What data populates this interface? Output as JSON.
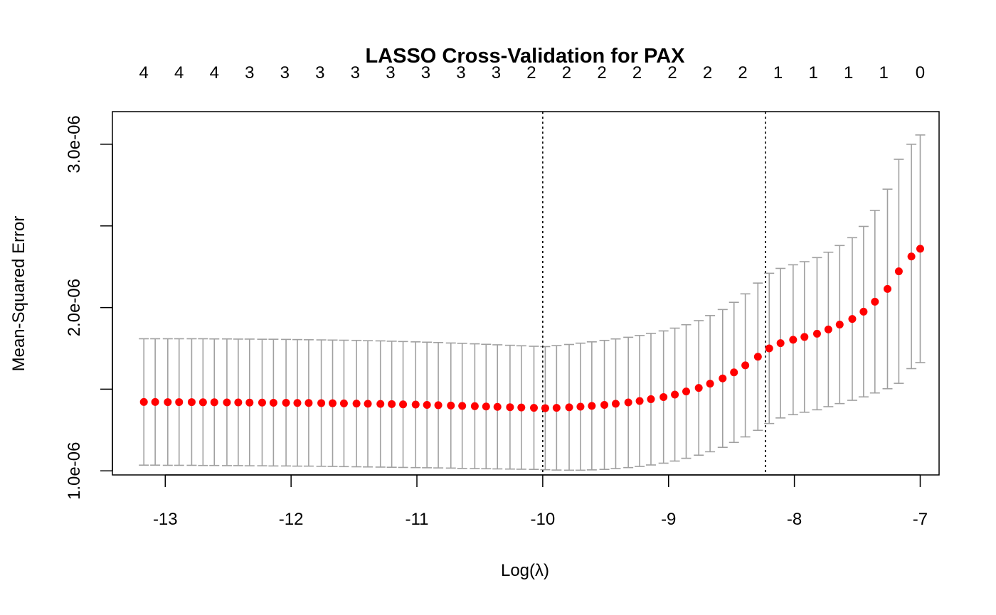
{
  "chart_data": {
    "type": "scatter",
    "title": "LASSO Cross-Validation for PAX",
    "xlabel": "Log(λ)",
    "ylabel": "Mean-Squared Error",
    "xlim": [
      -13.42,
      -6.85
    ],
    "ylim": [
      9.75e-07,
      3.2e-06
    ],
    "x_ticks": [
      -13,
      -12,
      -11,
      -10,
      -9,
      -8,
      -7
    ],
    "x_tick_labels": [
      "-13",
      "-12",
      "-11",
      "-10",
      "-9",
      "-8",
      "-7"
    ],
    "y_ticks": [
      1e-06,
      1.5e-06,
      2e-06,
      2.5e-06,
      3e-06
    ],
    "y_tick_labels": [
      "1.0e-06",
      "",
      "2.0e-06",
      "",
      "3.0e-06"
    ],
    "lambda_min_log": -10.0,
    "lambda_1se_log": -8.23,
    "top_axis": {
      "positions": [
        -13.17,
        -12.89,
        -12.61,
        -12.33,
        -12.05,
        -11.77,
        -11.49,
        -11.21,
        -10.93,
        -10.65,
        -10.37,
        -10.09,
        -9.81,
        -9.53,
        -9.25,
        -8.97,
        -8.69,
        -8.41,
        -8.13,
        -7.85,
        -7.57,
        -7.29,
        -7.0
      ],
      "labels": [
        "4",
        "4",
        "4",
        "3",
        "3",
        "3",
        "3",
        "3",
        "3",
        "3",
        "3",
        "2",
        "2",
        "2",
        "2",
        "2",
        "2",
        "2",
        "1",
        "1",
        "1",
        "1",
        "0"
      ]
    },
    "series": [
      {
        "x": [
          -13.17,
          -13.08,
          -12.98,
          -12.89,
          -12.79,
          -12.7,
          -12.61,
          -12.51,
          -12.42,
          -12.33,
          -12.23,
          -12.14,
          -12.04,
          -11.95,
          -11.86,
          -11.76,
          -11.67,
          -11.58,
          -11.48,
          -11.39,
          -11.29,
          -11.2,
          -11.11,
          -11.01,
          -10.92,
          -10.83,
          -10.73,
          -10.64,
          -10.54,
          -10.45,
          -10.36,
          -10.26,
          -10.17,
          -10.07,
          -9.98,
          -9.89,
          -9.79,
          -9.7,
          -9.61,
          -9.51,
          -9.42,
          -9.32,
          -9.23,
          -9.14,
          -9.04,
          -8.95,
          -8.86,
          -8.76,
          -8.67,
          -8.57,
          -8.48,
          -8.39,
          -8.29,
          -8.2,
          -8.11,
          -8.01,
          -7.92,
          -7.82,
          -7.73,
          -7.64,
          -7.54,
          -7.45,
          -7.36,
          -7.26,
          -7.17,
          -7.07,
          -7.0
        ],
        "y": [
          1.422e-06,
          1.422e-06,
          1.421e-06,
          1.421e-06,
          1.421e-06,
          1.42e-06,
          1.42e-06,
          1.419e-06,
          1.419e-06,
          1.418e-06,
          1.418e-06,
          1.417e-06,
          1.417e-06,
          1.416e-06,
          1.416e-06,
          1.415e-06,
          1.414e-06,
          1.413e-06,
          1.412e-06,
          1.411e-06,
          1.41e-06,
          1.409e-06,
          1.407e-06,
          1.406e-06,
          1.404e-06,
          1.402e-06,
          1.4e-06,
          1.398e-06,
          1.396e-06,
          1.394e-06,
          1.392e-06,
          1.39e-06,
          1.388e-06,
          1.386e-06,
          1.384e-06,
          1.386e-06,
          1.389e-06,
          1.393e-06,
          1.398e-06,
          1.404e-06,
          1.411e-06,
          1.419e-06,
          1.428e-06,
          1.439e-06,
          1.452e-06,
          1.467e-06,
          1.486e-06,
          1.508e-06,
          1.534e-06,
          1.566e-06,
          1.603e-06,
          1.646e-06,
          1.699e-06,
          1.75e-06,
          1.782e-06,
          1.803e-06,
          1.82e-06,
          1.84e-06,
          1.866e-06,
          1.896e-06,
          1.93e-06,
          1.975e-06,
          2.036e-06,
          2.114e-06,
          2.222e-06,
          2.313e-06,
          2.36e-06
        ],
        "upper": [
          1.809e-06,
          1.809e-06,
          1.809e-06,
          1.809e-06,
          1.809e-06,
          1.809e-06,
          1.808e-06,
          1.808e-06,
          1.807e-06,
          1.807e-06,
          1.806e-06,
          1.806e-06,
          1.805e-06,
          1.804e-06,
          1.803e-06,
          1.802e-06,
          1.801e-06,
          1.8e-06,
          1.799e-06,
          1.797e-06,
          1.796e-06,
          1.794e-06,
          1.792e-06,
          1.79e-06,
          1.788e-06,
          1.786e-06,
          1.783e-06,
          1.781e-06,
          1.778e-06,
          1.775e-06,
          1.772e-06,
          1.769e-06,
          1.766e-06,
          1.763e-06,
          1.761e-06,
          1.767e-06,
          1.774e-06,
          1.782e-06,
          1.79e-06,
          1.799e-06,
          1.808e-06,
          1.818e-06,
          1.829e-06,
          1.842e-06,
          1.857e-06,
          1.874e-06,
          1.895e-06,
          1.92e-06,
          1.951e-06,
          1.988e-06,
          2.032e-06,
          2.084e-06,
          2.15e-06,
          2.21e-06,
          2.24e-06,
          2.262e-06,
          2.281e-06,
          2.306e-06,
          2.339e-06,
          2.38e-06,
          2.428e-06,
          2.497e-06,
          2.595e-06,
          2.725e-06,
          2.908e-06,
          3e-06,
          3.057e-06
        ],
        "lower": [
          1.035e-06,
          1.035e-06,
          1.034e-06,
          1.034e-06,
          1.034e-06,
          1.033e-06,
          1.033e-06,
          1.032e-06,
          1.032e-06,
          1.031e-06,
          1.031e-06,
          1.03e-06,
          1.03e-06,
          1.029e-06,
          1.029e-06,
          1.028e-06,
          1.027e-06,
          1.026e-06,
          1.025e-06,
          1.024e-06,
          1.023e-06,
          1.022e-06,
          1.021e-06,
          1.02e-06,
          1.019e-06,
          1.018e-06,
          1.017e-06,
          1.015e-06,
          1.014e-06,
          1.013e-06,
          1.012e-06,
          1.011e-06,
          1.01e-06,
          1.009e-06,
          1.007e-06,
          1.005e-06,
          1.004e-06,
          1.004e-06,
          1.006e-06,
          1.009e-06,
          1.014e-06,
          1.02e-06,
          1.027e-06,
          1.036e-06,
          1.047e-06,
          1.06e-06,
          1.077e-06,
          1.096e-06,
          1.117e-06,
          1.144e-06,
          1.174e-06,
          1.208e-06,
          1.248e-06,
          1.29e-06,
          1.324e-06,
          1.344e-06,
          1.359e-06,
          1.374e-06,
          1.393e-06,
          1.412e-06,
          1.432e-06,
          1.453e-06,
          1.477e-06,
          1.503e-06,
          1.536e-06,
          1.626e-06,
          1.663e-06
        ]
      }
    ],
    "grid": false
  },
  "colors": {
    "points": "#ff0000",
    "error_bars": "#a0a0a0",
    "axes": "#000000",
    "vlines": "#000000"
  }
}
